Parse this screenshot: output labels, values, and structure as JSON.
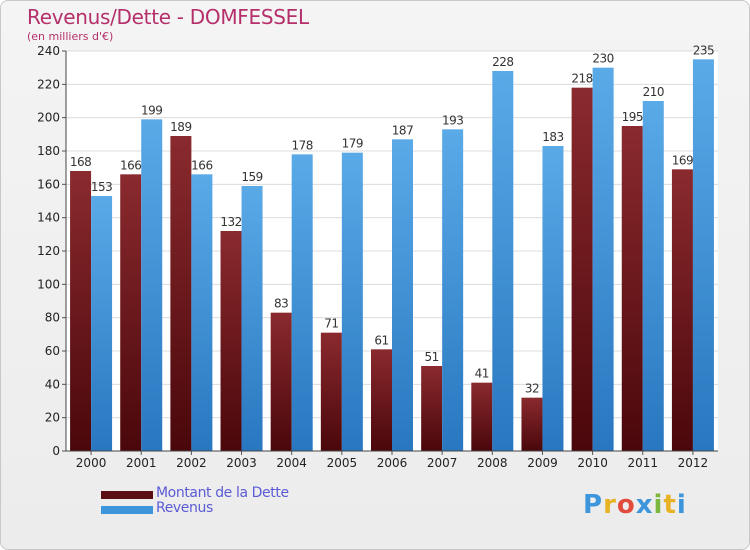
{
  "chart_data": {
    "type": "bar",
    "title": "Revenus/Dette - DOMFESSEL",
    "subtitle": "(en milliers d'€)",
    "categories": [
      "2000",
      "2001",
      "2002",
      "2003",
      "2004",
      "2005",
      "2006",
      "2007",
      "2008",
      "2009",
      "2010",
      "2011",
      "2012"
    ],
    "series": [
      {
        "name": "Montant de la Dette",
        "color": "#6b1419",
        "values": [
          168,
          166,
          189,
          132,
          83,
          71,
          61,
          51,
          41,
          32,
          218,
          195,
          169
        ]
      },
      {
        "name": "Revenus",
        "color": "#3d95dc",
        "values": [
          153,
          199,
          166,
          159,
          178,
          179,
          187,
          193,
          228,
          183,
          230,
          210,
          235
        ]
      }
    ],
    "ylim": [
      0,
      240
    ],
    "yticks": [
      0,
      20,
      40,
      60,
      80,
      100,
      120,
      140,
      160,
      180,
      200,
      220,
      240
    ],
    "grid": true,
    "legend_position": "bottom-left",
    "xlabel": "",
    "ylabel": ""
  },
  "logo": {
    "text": "Proxiti",
    "colors": [
      "#3d95dc",
      "#e8b225",
      "#e24b3b",
      "#3d95dc",
      "#7cb83d",
      "#e8b225",
      "#3d95dc"
    ]
  }
}
